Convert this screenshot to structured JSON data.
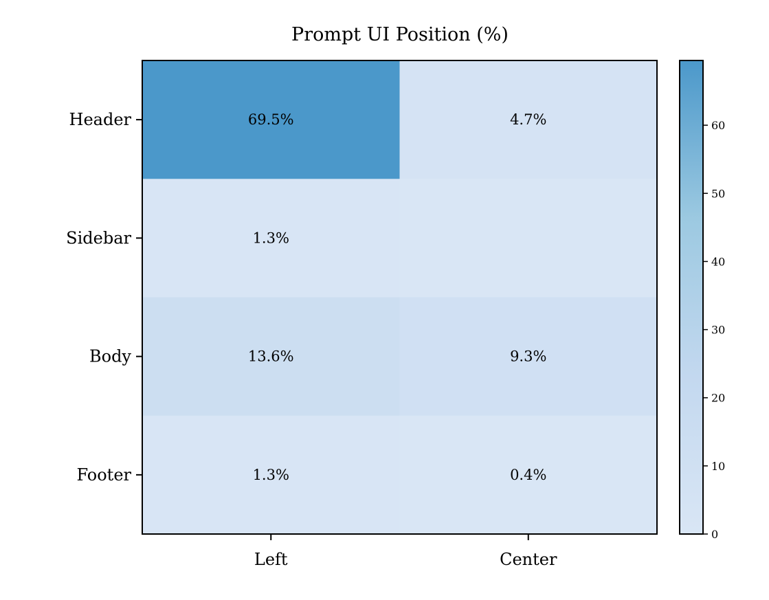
{
  "chart_data": {
    "type": "heatmap",
    "title": "Prompt UI Position (%)",
    "xlabel": "",
    "ylabel": "",
    "columns": [
      "Left",
      "Center"
    ],
    "rows": [
      "Header",
      "Sidebar",
      "Body",
      "Footer"
    ],
    "values": [
      [
        69.5,
        4.7
      ],
      [
        1.3,
        0.0
      ],
      [
        13.6,
        9.3
      ],
      [
        1.3,
        0.4
      ]
    ],
    "cell_labels": [
      [
        "69.5%",
        "4.7%"
      ],
      [
        "1.3%",
        ""
      ],
      [
        "13.6%",
        "9.3%"
      ],
      [
        "1.3%",
        "0.4%"
      ]
    ],
    "colorbar": {
      "min": 0,
      "max": 69.5,
      "ticks": [
        0,
        10,
        20,
        30,
        40,
        50,
        60
      ],
      "colors": [
        "#d9e6f5",
        "#c3d8ef",
        "#9cc9e1",
        "#4b98ca"
      ]
    },
    "grid": false,
    "legend": "none"
  }
}
